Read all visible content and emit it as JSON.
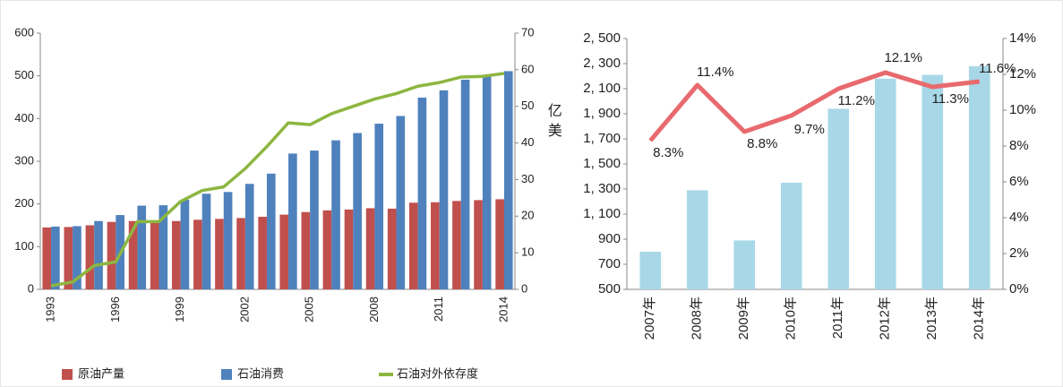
{
  "chart_data": [
    {
      "type": "bar",
      "categories": [
        "1993",
        null,
        null,
        "1996",
        null,
        null,
        "1999",
        null,
        null,
        "2002",
        null,
        null,
        "2005",
        null,
        null,
        "2008",
        null,
        null,
        "2011",
        null,
        null,
        "2014"
      ],
      "series": [
        {
          "name": "原油产量",
          "color": "#c0504d",
          "values": [
            145,
            146,
            150,
            158,
            160,
            161,
            160,
            163,
            165,
            167,
            170,
            175,
            181,
            185,
            187,
            190,
            189,
            203,
            204,
            207,
            209,
            211
          ]
        },
        {
          "name": "石油消费",
          "color": "#4f81bd",
          "values": [
            147,
            148,
            160,
            174,
            196,
            197,
            210,
            224,
            228,
            247,
            271,
            318,
            325,
            349,
            366,
            388,
            406,
            449,
            466,
            491,
            500,
            511
          ]
        },
        {
          "name": "石油对外依存度",
          "color": "#8db640",
          "type": "line",
          "axis": "y2",
          "values": [
            1,
            2,
            6.5,
            7.5,
            18.5,
            18.5,
            24,
            27,
            28,
            33,
            39,
            45.5,
            45,
            48,
            50,
            52,
            53.5,
            55.5,
            56.5,
            58,
            58.2,
            59
          ]
        }
      ],
      "ylim": [
        0,
        600
      ],
      "yticks": [
        0,
        100,
        200,
        300,
        400,
        500,
        600
      ],
      "y2lim": [
        0,
        70
      ],
      "y2ticks": [
        0,
        10,
        20,
        30,
        40,
        50,
        60,
        70
      ],
      "legend": "bottom"
    },
    {
      "type": "bar",
      "ylabel": "亿美",
      "categories": [
        "2007年",
        "2008年",
        "2009年",
        "2010年",
        "2011年",
        "2012年",
        "2013年",
        "2014年"
      ],
      "series": [
        {
          "color": "#a8d8e8",
          "values": [
            800,
            1290,
            890,
            1350,
            1940,
            2180,
            2210,
            2280
          ]
        },
        {
          "color": "#e86a6e",
          "type": "line",
          "axis": "y2",
          "values": [
            8.3,
            11.4,
            8.8,
            9.7,
            11.2,
            12.1,
            11.3,
            11.6
          ],
          "value_labels": [
            "8.3%",
            "11.4%",
            "8.8%",
            "9.7%",
            "11.2%",
            "12.1%",
            "11.3%",
            "11.6%"
          ]
        }
      ],
      "ylim": [
        500,
        2500
      ],
      "yticks": [
        500,
        700,
        900,
        {
          "value": 1100,
          "label": "1, 100"
        },
        {
          "value": 1300,
          "label": "1, 300"
        },
        {
          "value": 1500,
          "label": "1, 500"
        },
        {
          "value": 1700,
          "label": "1, 700"
        },
        {
          "value": 1900,
          "label": "1, 900"
        },
        {
          "value": 2100,
          "label": "2, 100"
        },
        {
          "value": 2300,
          "label": "2, 300"
        },
        {
          "value": 2500,
          "label": "2, 500"
        }
      ],
      "y2lim": [
        0,
        14
      ],
      "y2ticks": [
        {
          "value": 0,
          "label": "0%"
        },
        {
          "value": 2,
          "label": "2%"
        },
        {
          "value": 4,
          "label": "4%"
        },
        {
          "value": 6,
          "label": "6%"
        },
        {
          "value": 8,
          "label": "8%"
        },
        {
          "value": 10,
          "label": "10%"
        },
        {
          "value": 12,
          "label": "12%"
        },
        {
          "value": 14,
          "label": "14%"
        }
      ]
    }
  ]
}
